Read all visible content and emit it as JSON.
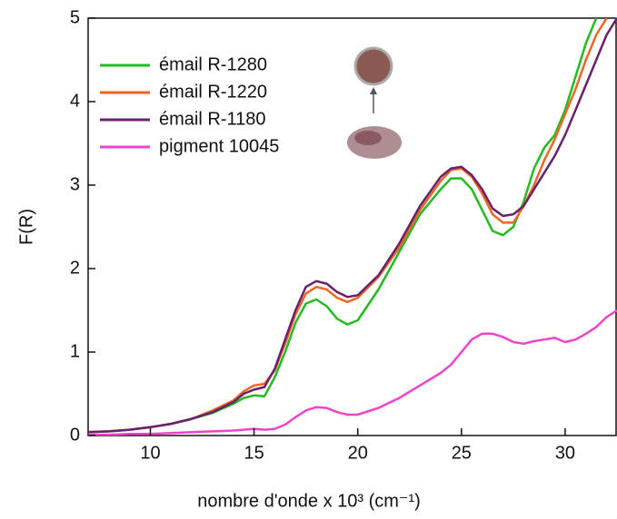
{
  "chart_data": {
    "type": "line",
    "xlabel": "nombre d'onde x 10³ (cm⁻¹)",
    "ylabel": "F(R)",
    "x": [
      7,
      8,
      9,
      10,
      11,
      12,
      13,
      14,
      14.5,
      15,
      15.5,
      16,
      16.5,
      17,
      17.5,
      18,
      18.5,
      19,
      19.5,
      20,
      21,
      22,
      23,
      24,
      24.5,
      25,
      25.5,
      26,
      26.5,
      27,
      27.5,
      28,
      28.5,
      29,
      29.5,
      30,
      30.5,
      31,
      31.5,
      32,
      32.5
    ],
    "xlim": [
      7,
      32.5
    ],
    "xticks": [
      10,
      15,
      20,
      25,
      30
    ],
    "ylim": [
      0,
      5
    ],
    "yticks": [
      0,
      1,
      2,
      3,
      4,
      5
    ],
    "legend": "upper-left",
    "grid": false,
    "series": [
      {
        "name": "émail R-1280",
        "color": "#22bb22",
        "values": [
          0.04,
          0.05,
          0.07,
          0.1,
          0.14,
          0.2,
          0.27,
          0.38,
          0.45,
          0.48,
          0.47,
          0.7,
          1.0,
          1.35,
          1.58,
          1.63,
          1.55,
          1.4,
          1.33,
          1.38,
          1.75,
          2.2,
          2.65,
          2.95,
          3.08,
          3.08,
          2.95,
          2.7,
          2.45,
          2.4,
          2.5,
          2.8,
          3.2,
          3.45,
          3.6,
          3.9,
          4.3,
          4.7,
          5.0,
          null,
          null
        ]
      },
      {
        "name": "émail R-1220",
        "color": "#ee6622",
        "values": [
          0.04,
          0.05,
          0.07,
          0.1,
          0.14,
          0.2,
          0.3,
          0.42,
          0.53,
          0.6,
          0.62,
          0.78,
          1.1,
          1.45,
          1.7,
          1.78,
          1.75,
          1.65,
          1.6,
          1.65,
          1.9,
          2.25,
          2.7,
          3.05,
          3.18,
          3.2,
          3.1,
          2.9,
          2.65,
          2.55,
          2.55,
          2.75,
          3.0,
          3.3,
          3.55,
          3.85,
          4.15,
          4.5,
          4.8,
          5.0,
          null
        ]
      },
      {
        "name": "émail R-1180",
        "color": "#6a1f6f",
        "values": [
          0.04,
          0.05,
          0.07,
          0.1,
          0.14,
          0.2,
          0.28,
          0.4,
          0.5,
          0.55,
          0.58,
          0.8,
          1.15,
          1.5,
          1.78,
          1.85,
          1.82,
          1.72,
          1.66,
          1.68,
          1.92,
          2.3,
          2.75,
          3.1,
          3.2,
          3.22,
          3.12,
          2.95,
          2.72,
          2.63,
          2.65,
          2.75,
          2.95,
          3.15,
          3.35,
          3.6,
          3.9,
          4.2,
          4.5,
          4.8,
          5.0
        ]
      },
      {
        "name": "pigment 10045",
        "color": "#ee44cc",
        "values": [
          0.01,
          0.01,
          0.02,
          0.02,
          0.03,
          0.04,
          0.05,
          0.06,
          0.07,
          0.08,
          0.07,
          0.08,
          0.13,
          0.22,
          0.3,
          0.34,
          0.33,
          0.28,
          0.25,
          0.25,
          0.33,
          0.45,
          0.6,
          0.75,
          0.85,
          1.0,
          1.15,
          1.22,
          1.22,
          1.18,
          1.12,
          1.1,
          1.13,
          1.15,
          1.17,
          1.12,
          1.15,
          1.22,
          1.3,
          1.42,
          1.5
        ]
      }
    ]
  }
}
